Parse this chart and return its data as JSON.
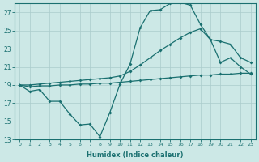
{
  "xlabel": "Humidex (Indice chaleur)",
  "background_color": "#cce8e6",
  "grid_color": "#aacccc",
  "line_color": "#1a7070",
  "ylim": [
    13,
    28
  ],
  "xlim": [
    -0.5,
    23.5
  ],
  "y_ticks": [
    13,
    15,
    17,
    19,
    21,
    23,
    25,
    27
  ],
  "x_ticks": [
    0,
    1,
    2,
    3,
    4,
    5,
    6,
    7,
    8,
    9,
    10,
    11,
    12,
    13,
    14,
    15,
    16,
    17,
    18,
    19,
    20,
    21,
    22,
    23
  ],
  "line1_x": [
    0,
    1,
    2,
    3,
    4,
    5,
    6,
    7,
    8,
    9,
    10,
    11,
    12,
    13,
    14,
    15,
    16,
    17,
    18,
    19,
    20,
    21,
    22,
    23
  ],
  "line1_y": [
    19.0,
    18.3,
    18.5,
    17.2,
    17.2,
    15.8,
    14.6,
    14.7,
    13.3,
    16.0,
    19.1,
    21.3,
    25.3,
    27.2,
    27.3,
    28.0,
    28.1,
    27.8,
    25.7,
    24.0,
    21.5,
    22.0,
    21.0,
    20.2
  ],
  "line2_x": [
    0,
    1,
    2,
    3,
    4,
    5,
    6,
    7,
    8,
    9,
    10,
    11,
    12,
    13,
    14,
    15,
    16,
    17,
    18,
    19,
    20,
    21,
    22,
    23
  ],
  "line2_y": [
    19.0,
    19.0,
    19.1,
    19.2,
    19.3,
    19.4,
    19.5,
    19.6,
    19.7,
    19.8,
    20.0,
    20.5,
    21.2,
    22.0,
    22.8,
    23.5,
    24.2,
    24.8,
    25.2,
    24.0,
    23.8,
    23.5,
    22.0,
    21.5
  ],
  "line3_x": [
    0,
    1,
    2,
    3,
    4,
    5,
    6,
    7,
    8,
    9,
    10,
    11,
    12,
    13,
    14,
    15,
    16,
    17,
    18,
    19,
    20,
    21,
    22,
    23
  ],
  "line3_y": [
    19.0,
    18.8,
    18.9,
    18.9,
    19.0,
    19.0,
    19.1,
    19.1,
    19.2,
    19.2,
    19.3,
    19.4,
    19.5,
    19.6,
    19.7,
    19.8,
    19.9,
    20.0,
    20.1,
    20.1,
    20.2,
    20.2,
    20.3,
    20.3
  ]
}
